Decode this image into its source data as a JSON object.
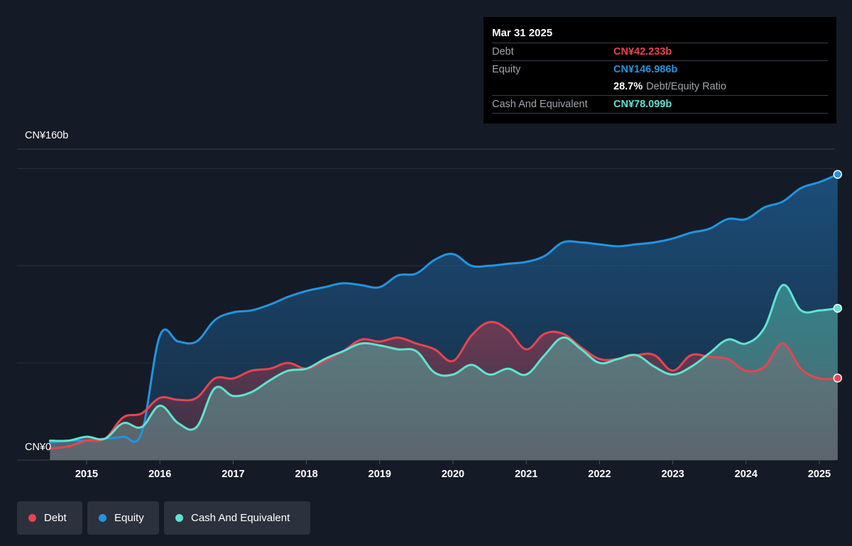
{
  "colors": {
    "background": "#151b26",
    "debt": "#e64550",
    "equity": "#2394df",
    "cash": "#5fe3d0"
  },
  "tooltip": {
    "date": "Mar 31 2025",
    "debt_label": "Debt",
    "debt_value": "CN¥42.233b",
    "equity_label": "Equity",
    "equity_value": "CN¥146.986b",
    "ratio_value": "28.7%",
    "ratio_label": "Debt/Equity Ratio",
    "cash_label": "Cash And Equivalent",
    "cash_value": "CN¥78.099b"
  },
  "legend": {
    "debt": "Debt",
    "equity": "Equity",
    "cash": "Cash And Equivalent"
  },
  "chart_data": {
    "type": "area",
    "unit": "CN¥ billions",
    "y_axis_labels": {
      "top": "CN¥160b",
      "bottom": "CN¥0"
    },
    "ylim": [
      0,
      160
    ],
    "xlim": [
      2014.5,
      2025.25
    ],
    "x_ticks": [
      "2015",
      "2016",
      "2017",
      "2018",
      "2019",
      "2020",
      "2021",
      "2022",
      "2023",
      "2024",
      "2025"
    ],
    "grid": true,
    "series": [
      {
        "name": "Debt",
        "key": "debt",
        "points": [
          [
            2014.5,
            6
          ],
          [
            2014.75,
            7
          ],
          [
            2015.0,
            10
          ],
          [
            2015.25,
            11
          ],
          [
            2015.5,
            22
          ],
          [
            2015.75,
            24
          ],
          [
            2016.0,
            32
          ],
          [
            2016.25,
            31
          ],
          [
            2016.5,
            32
          ],
          [
            2016.75,
            42
          ],
          [
            2017.0,
            42
          ],
          [
            2017.25,
            46
          ],
          [
            2017.5,
            47
          ],
          [
            2017.75,
            50
          ],
          [
            2018.0,
            47
          ],
          [
            2018.25,
            51
          ],
          [
            2018.5,
            56
          ],
          [
            2018.75,
            62
          ],
          [
            2019.0,
            61
          ],
          [
            2019.25,
            63
          ],
          [
            2019.5,
            60
          ],
          [
            2019.75,
            57
          ],
          [
            2020.0,
            51
          ],
          [
            2020.25,
            64
          ],
          [
            2020.5,
            71
          ],
          [
            2020.75,
            67
          ],
          [
            2021.0,
            57
          ],
          [
            2021.25,
            65
          ],
          [
            2021.5,
            65
          ],
          [
            2021.75,
            58
          ],
          [
            2022.0,
            52
          ],
          [
            2022.25,
            52
          ],
          [
            2022.5,
            54
          ],
          [
            2022.75,
            54
          ],
          [
            2023.0,
            46
          ],
          [
            2023.25,
            54
          ],
          [
            2023.5,
            53
          ],
          [
            2023.75,
            52
          ],
          [
            2024.0,
            46
          ],
          [
            2024.25,
            48
          ],
          [
            2024.5,
            60
          ],
          [
            2024.75,
            47
          ],
          [
            2025.0,
            42
          ],
          [
            2025.25,
            42.2
          ]
        ]
      },
      {
        "name": "Equity",
        "key": "equity",
        "points": [
          [
            2014.5,
            9
          ],
          [
            2014.75,
            10
          ],
          [
            2015.0,
            10
          ],
          [
            2015.25,
            11
          ],
          [
            2015.5,
            12
          ],
          [
            2015.75,
            14
          ],
          [
            2016.0,
            64
          ],
          [
            2016.25,
            61
          ],
          [
            2016.5,
            61
          ],
          [
            2016.75,
            72
          ],
          [
            2017.0,
            76
          ],
          [
            2017.25,
            77
          ],
          [
            2017.5,
            80
          ],
          [
            2017.75,
            84
          ],
          [
            2018.0,
            87
          ],
          [
            2018.25,
            89
          ],
          [
            2018.5,
            91
          ],
          [
            2018.75,
            90
          ],
          [
            2019.0,
            89
          ],
          [
            2019.25,
            95
          ],
          [
            2019.5,
            96
          ],
          [
            2019.75,
            103
          ],
          [
            2020.0,
            106
          ],
          [
            2020.25,
            100
          ],
          [
            2020.5,
            100
          ],
          [
            2020.75,
            101
          ],
          [
            2021.0,
            102
          ],
          [
            2021.25,
            105
          ],
          [
            2021.5,
            112
          ],
          [
            2021.75,
            112
          ],
          [
            2022.0,
            111
          ],
          [
            2022.25,
            110
          ],
          [
            2022.5,
            111
          ],
          [
            2022.75,
            112
          ],
          [
            2023.0,
            114
          ],
          [
            2023.25,
            117
          ],
          [
            2023.5,
            119
          ],
          [
            2023.75,
            124
          ],
          [
            2024.0,
            124
          ],
          [
            2024.25,
            130
          ],
          [
            2024.5,
            133
          ],
          [
            2024.75,
            140
          ],
          [
            2025.0,
            143
          ],
          [
            2025.25,
            147
          ]
        ]
      },
      {
        "name": "Cash And Equivalent",
        "key": "cash",
        "points": [
          [
            2014.5,
            10
          ],
          [
            2014.75,
            10
          ],
          [
            2015.0,
            12
          ],
          [
            2015.25,
            11
          ],
          [
            2015.5,
            19
          ],
          [
            2015.75,
            17
          ],
          [
            2016.0,
            28
          ],
          [
            2016.25,
            19
          ],
          [
            2016.5,
            17
          ],
          [
            2016.75,
            37
          ],
          [
            2017.0,
            33
          ],
          [
            2017.25,
            35
          ],
          [
            2017.5,
            41
          ],
          [
            2017.75,
            46
          ],
          [
            2018.0,
            47
          ],
          [
            2018.25,
            52
          ],
          [
            2018.5,
            56
          ],
          [
            2018.75,
            60
          ],
          [
            2019.0,
            59
          ],
          [
            2019.25,
            57
          ],
          [
            2019.5,
            56
          ],
          [
            2019.75,
            45
          ],
          [
            2020.0,
            44
          ],
          [
            2020.25,
            49
          ],
          [
            2020.5,
            44
          ],
          [
            2020.75,
            47
          ],
          [
            2021.0,
            44
          ],
          [
            2021.25,
            54
          ],
          [
            2021.5,
            63
          ],
          [
            2021.75,
            57
          ],
          [
            2022.0,
            50
          ],
          [
            2022.25,
            52
          ],
          [
            2022.5,
            54
          ],
          [
            2022.75,
            48
          ],
          [
            2023.0,
            44
          ],
          [
            2023.25,
            48
          ],
          [
            2023.5,
            55
          ],
          [
            2023.75,
            62
          ],
          [
            2024.0,
            60
          ],
          [
            2024.25,
            68
          ],
          [
            2024.5,
            90
          ],
          [
            2024.75,
            77
          ],
          [
            2025.0,
            77
          ],
          [
            2025.25,
            78.1
          ]
        ]
      }
    ]
  }
}
